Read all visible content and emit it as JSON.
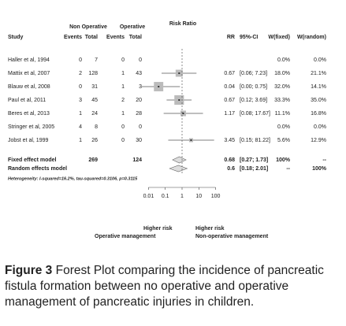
{
  "chart_data": {
    "type": "forest",
    "title": "Risk Ratio",
    "group_headers": [
      "Non Operative",
      "Operative"
    ],
    "columns": {
      "study": "Study",
      "events1": "Events",
      "total1": "Total",
      "events2": "Events",
      "total2": "Total",
      "rr": "RR",
      "ci": "95%-CI",
      "w_fixed": "W(fixed)",
      "w_random": "W(random)"
    },
    "studies": [
      {
        "name": "Haller et al, 1994",
        "events1": 0,
        "total1": 7,
        "events2": 0,
        "total2": 0,
        "rr": null,
        "ci_low": null,
        "ci_high": null,
        "ci_label": null,
        "w_fixed": 0.0,
        "w_fixed_label": "0.0%",
        "w_random": 0.0,
        "w_random_label": "0.0%"
      },
      {
        "name": "Mattix et al, 2007",
        "events1": 2,
        "total1": 128,
        "events2": 1,
        "total2": 43,
        "rr": 0.67,
        "ci_low": 0.06,
        "ci_high": 7.23,
        "ci_label": "[0.06; 7.23]",
        "w_fixed": 18.0,
        "w_fixed_label": "18.0%",
        "w_random": 21.1,
        "w_random_label": "21.1%"
      },
      {
        "name": "Blauw et al, 2008",
        "events1": 0,
        "total1": 31,
        "events2": 1,
        "total2": 3,
        "rr": 0.04,
        "ci_low": 0.0,
        "ci_high": 0.75,
        "ci_label": "[0.00; 0.75]",
        "w_fixed": 32.0,
        "w_fixed_label": "32.0%",
        "w_random": 14.1,
        "w_random_label": "14.1%"
      },
      {
        "name": "Paul et al, 2011",
        "events1": 3,
        "total1": 45,
        "events2": 2,
        "total2": 20,
        "rr": 0.67,
        "ci_low": 0.12,
        "ci_high": 3.69,
        "ci_label": "[0.12; 3.69]",
        "w_fixed": 33.3,
        "w_fixed_label": "33.3%",
        "w_random": 35.0,
        "w_random_label": "35.0%"
      },
      {
        "name": "Beres et al, 2013",
        "events1": 1,
        "total1": 24,
        "events2": 1,
        "total2": 28,
        "rr": 1.17,
        "ci_low": 0.08,
        "ci_high": 17.67,
        "ci_label": "[0.08; 17.67]",
        "w_fixed": 11.1,
        "w_fixed_label": "11.1%",
        "w_random": 16.8,
        "w_random_label": "16.8%"
      },
      {
        "name": "Stringer et al, 2005",
        "events1": 4,
        "total1": 8,
        "events2": 0,
        "total2": 0,
        "rr": null,
        "ci_low": null,
        "ci_high": null,
        "ci_label": null,
        "w_fixed": 0.0,
        "w_fixed_label": "0.0%",
        "w_random": 0.0,
        "w_random_label": "0.0%"
      },
      {
        "name": "Jobst et al, 1999",
        "events1": 1,
        "total1": 26,
        "events2": 0,
        "total2": 30,
        "rr": 3.45,
        "ci_low": 0.15,
        "ci_high": 81.22,
        "ci_label": "[0.15; 81.22]",
        "w_fixed": 5.6,
        "w_fixed_label": "5.6%",
        "w_random": 12.9,
        "w_random_label": "12.9%"
      }
    ],
    "models": [
      {
        "name": "Fixed effect model",
        "total1": 269,
        "total2": 124,
        "rr": 0.68,
        "ci_low": 0.27,
        "ci_high": 1.73,
        "ci_label": "[0.27; 1.73]",
        "w_fixed_label": "100%",
        "w_random_label": "--"
      },
      {
        "name": "Random effects model",
        "rr": 0.6,
        "ci_low": 0.18,
        "ci_high": 2.01,
        "ci_label": "[0.18; 2.01]",
        "w_fixed_label": "--",
        "w_random_label": "100%"
      }
    ],
    "heterogeneity": "Heterogeneity: I-squared=16.2%, tau-squared=0.3106, p=0.3115",
    "log_x": true,
    "xlim": [
      0.005,
      200
    ],
    "xticks": [
      0.01,
      0.1,
      1,
      10,
      100
    ],
    "left_label": [
      "Higher risk",
      "Operative management"
    ],
    "right_label": [
      "Higher risk",
      "Non-operative management"
    ],
    "caption": {
      "label": "Figure 3",
      "text": " Forest Plot comparing the incidence of pancreatic fistula formation between no operative and operative management of pancreatic injuries in children."
    }
  }
}
